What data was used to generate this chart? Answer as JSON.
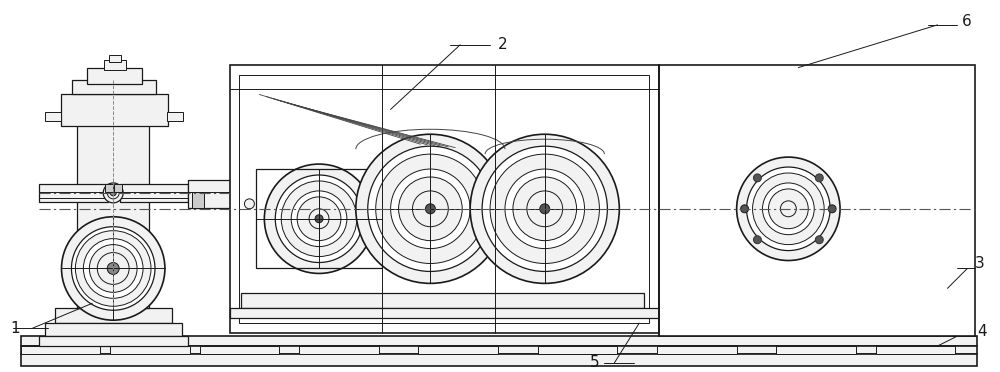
{
  "bg_color": "#ffffff",
  "line_color": "#1a1a1a",
  "lw_main": 1.2,
  "lw_thin": 0.7,
  "lw_med": 0.9,
  "figsize": [
    10.0,
    3.72
  ],
  "dpi": 100
}
